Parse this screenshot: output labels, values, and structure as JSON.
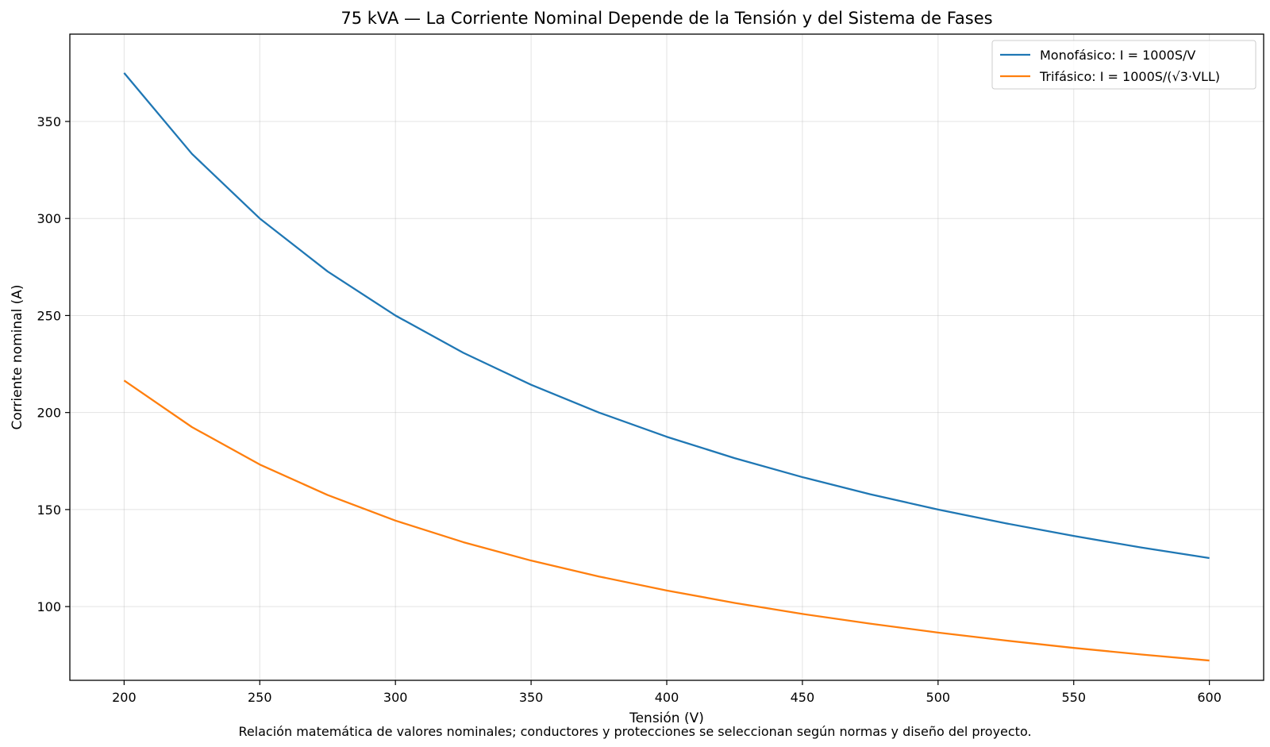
{
  "chart_data": {
    "type": "line",
    "title": "75 kVA — La Corriente Nominal Depende de la Tensión y del Sistema de Fases",
    "xlabel": "Tensión (V)",
    "ylabel": "Corriente nominal (A)",
    "caption": "Relación matemática de valores nominales; conductores y protecciones se seleccionan según normas y diseño del proyecto.",
    "xlim": [
      180,
      620
    ],
    "ylim": [
      62,
      395
    ],
    "xticks": [
      200,
      250,
      300,
      350,
      400,
      450,
      500,
      550,
      600
    ],
    "yticks": [
      100,
      150,
      200,
      250,
      300,
      350
    ],
    "grid": true,
    "legend_position": "top-right",
    "series": [
      {
        "name": "Monofásico: I = 1000S/V",
        "color": "#1f77b4",
        "x": [
          200,
          225,
          250,
          275,
          300,
          325,
          350,
          375,
          400,
          425,
          450,
          475,
          500,
          525,
          550,
          575,
          600
        ],
        "y": [
          375.0,
          333.3,
          300.0,
          272.7,
          250.0,
          230.8,
          214.3,
          200.0,
          187.5,
          176.5,
          166.7,
          157.9,
          150.0,
          142.9,
          136.4,
          130.4,
          125.0
        ]
      },
      {
        "name": "Trifásico: I = 1000S/(√3·VLL)",
        "color": "#ff7f0e",
        "x": [
          200,
          225,
          250,
          275,
          300,
          325,
          350,
          375,
          400,
          425,
          450,
          475,
          500,
          525,
          550,
          575,
          600
        ],
        "y": [
          216.5,
          192.5,
          173.2,
          157.5,
          144.3,
          133.2,
          123.7,
          115.5,
          108.3,
          101.9,
          96.2,
          91.2,
          86.6,
          82.5,
          78.7,
          75.3,
          72.2
        ]
      }
    ]
  }
}
